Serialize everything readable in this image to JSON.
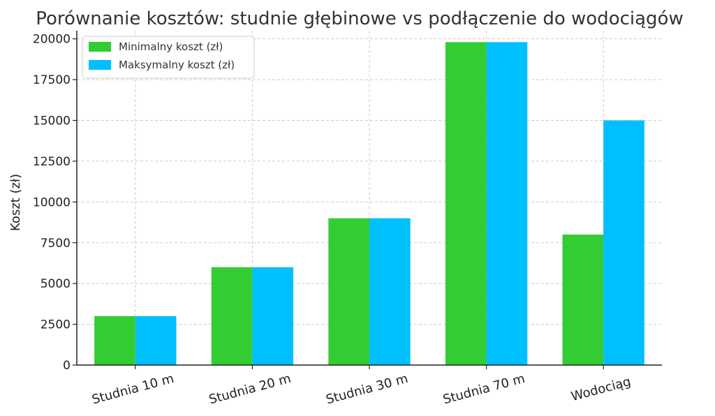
{
  "chart_data": {
    "type": "bar",
    "title": "Porównanie kosztów: studnie głębinowe vs podłączenie do wodociągów",
    "xlabel": "",
    "ylabel": "Koszt (zł)",
    "categories": [
      "Studnia 10 m",
      "Studnia 20 m",
      "Studnia 30 m",
      "Studnia 70 m",
      "Wodociąg"
    ],
    "series": [
      {
        "name": "Minimalny koszt (zł)",
        "color": "#33cc33",
        "values": [
          3000,
          6000,
          9000,
          19800,
          8000
        ]
      },
      {
        "name": "Maksymalny koszt (zł)",
        "color": "#00bfff",
        "values": [
          3000,
          6000,
          9000,
          19800,
          15000
        ]
      }
    ],
    "yticks": [
      "0",
      "2500",
      "5000",
      "7500",
      "10000",
      "12500",
      "15000",
      "17500",
      "20000"
    ],
    "ylim": [
      0,
      20500
    ],
    "grid": true,
    "legend_position": "top-left"
  }
}
